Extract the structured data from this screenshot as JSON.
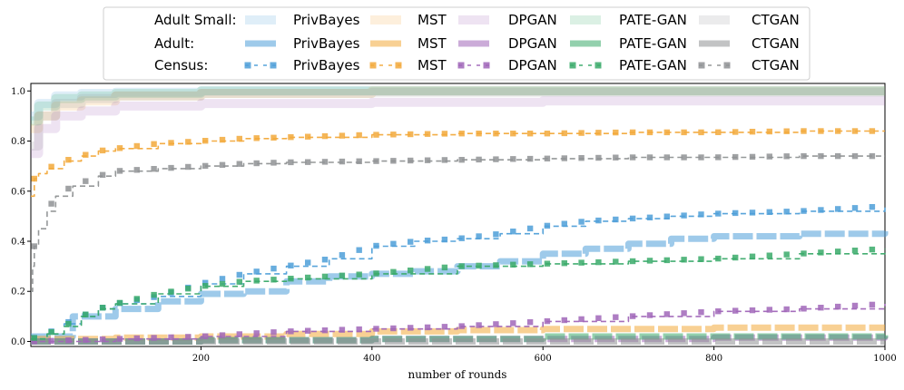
{
  "chart_data": {
    "type": "line",
    "title": "",
    "xlabel": "number of rounds",
    "ylabel": "",
    "xlim": [
      1,
      1000
    ],
    "ylim": [
      -0.02,
      1.03
    ],
    "x_ticks": [
      200,
      400,
      600,
      800,
      1000
    ],
    "y_ticks": [
      0.0,
      0.2,
      0.4,
      0.6,
      0.8,
      1.0
    ],
    "grid": false,
    "legend": {
      "placement": "top-center",
      "row_labels": [
        "Adult Small:",
        "Adult:",
        "Census:"
      ],
      "method_labels": [
        "PrivBayes",
        "MST",
        "DPGAN",
        "PATE-GAN",
        "CTGAN"
      ]
    },
    "colors": {
      "PrivBayes": "#4e9fd8",
      "MST": "#f2a93b",
      "DPGAN": "#a066b8",
      "PATE-GAN": "#3aaa6a",
      "CTGAN": "#8f9294"
    },
    "series": [
      {
        "name": "PrivBayes",
        "dataset": "Adult Small",
        "x": [
          1,
          10,
          30,
          60,
          100,
          200,
          400,
          1000
        ],
        "y": [
          0.9,
          0.95,
          0.98,
          0.99,
          0.995,
          1.0,
          1.0,
          1.0
        ]
      },
      {
        "name": "MST",
        "dataset": "Adult Small",
        "x": [
          1,
          10,
          30,
          60,
          100,
          200,
          400,
          1000
        ],
        "y": [
          0.85,
          0.9,
          0.94,
          0.96,
          0.98,
          0.99,
          1.0,
          1.0
        ]
      },
      {
        "name": "DPGAN",
        "dataset": "Adult Small",
        "x": [
          1,
          10,
          30,
          60,
          100,
          200,
          400,
          600,
          1000
        ],
        "y": [
          0.75,
          0.85,
          0.9,
          0.92,
          0.94,
          0.95,
          0.955,
          0.96,
          0.96
        ]
      },
      {
        "name": "PATE-GAN",
        "dataset": "Adult Small",
        "x": [
          1,
          10,
          30,
          60,
          100,
          200,
          400,
          1000
        ],
        "y": [
          0.88,
          0.94,
          0.97,
          0.98,
          0.99,
          1.0,
          1.0,
          1.0
        ]
      },
      {
        "name": "CTGAN",
        "dataset": "Adult Small",
        "x": [
          1,
          10,
          30,
          60,
          100,
          200,
          400,
          1000
        ],
        "y": [
          0.78,
          0.9,
          0.95,
          0.97,
          0.98,
          0.99,
          0.995,
          0.995
        ]
      },
      {
        "name": "PrivBayes",
        "dataset": "Adult",
        "x": [
          1,
          50,
          100,
          150,
          200,
          250,
          300,
          350,
          400,
          450,
          500,
          550,
          600,
          650,
          700,
          750,
          800,
          900,
          1000
        ],
        "y": [
          0.02,
          0.1,
          0.13,
          0.16,
          0.19,
          0.2,
          0.24,
          0.26,
          0.27,
          0.28,
          0.3,
          0.32,
          0.35,
          0.37,
          0.39,
          0.41,
          0.42,
          0.43,
          0.44
        ]
      },
      {
        "name": "MST",
        "dataset": "Adult",
        "x": [
          1,
          100,
          200,
          300,
          400,
          500,
          600,
          700,
          800,
          900,
          1000
        ],
        "y": [
          0.01,
          0.015,
          0.02,
          0.03,
          0.04,
          0.045,
          0.05,
          0.05,
          0.055,
          0.055,
          0.055
        ]
      },
      {
        "name": "DPGAN",
        "dataset": "Adult",
        "x": [
          1,
          200,
          400,
          600,
          800,
          1000
        ],
        "y": [
          0.0,
          0.005,
          0.01,
          0.01,
          0.015,
          0.02
        ]
      },
      {
        "name": "PATE-GAN",
        "dataset": "Adult",
        "x": [
          1,
          200,
          400,
          600,
          800,
          1000
        ],
        "y": [
          0.0,
          0.005,
          0.01,
          0.02,
          0.02,
          0.025
        ]
      },
      {
        "name": "CTGAN",
        "dataset": "Adult",
        "x": [
          1,
          200,
          400,
          600,
          800,
          1000
        ],
        "y": [
          0.0,
          0.0,
          0.0,
          0.0,
          0.0,
          0.0
        ]
      },
      {
        "name": "PrivBayes",
        "dataset": "Census",
        "x": [
          1,
          20,
          40,
          60,
          80,
          100,
          150,
          200,
          250,
          300,
          350,
          400,
          450,
          500,
          550,
          600,
          650,
          700,
          750,
          800,
          900,
          1000
        ],
        "y": [
          0.01,
          0.03,
          0.07,
          0.1,
          0.13,
          0.15,
          0.18,
          0.23,
          0.27,
          0.3,
          0.33,
          0.38,
          0.4,
          0.41,
          0.43,
          0.46,
          0.48,
          0.49,
          0.5,
          0.51,
          0.52,
          0.54
        ]
      },
      {
        "name": "MST",
        "dataset": "Census",
        "x": [
          1,
          5,
          10,
          20,
          40,
          60,
          80,
          100,
          150,
          200,
          250,
          300,
          400,
          500,
          600,
          700,
          800,
          900,
          1000
        ],
        "y": [
          0.58,
          0.65,
          0.67,
          0.69,
          0.72,
          0.74,
          0.76,
          0.77,
          0.79,
          0.8,
          0.81,
          0.815,
          0.825,
          0.83,
          0.83,
          0.835,
          0.835,
          0.84,
          0.84
        ]
      },
      {
        "name": "DPGAN",
        "dataset": "Census",
        "x": [
          1,
          100,
          200,
          300,
          400,
          500,
          600,
          700,
          800,
          900,
          1000
        ],
        "y": [
          0.0,
          0.01,
          0.02,
          0.04,
          0.05,
          0.06,
          0.08,
          0.1,
          0.12,
          0.13,
          0.15
        ]
      },
      {
        "name": "PATE-GAN",
        "dataset": "Census",
        "x": [
          1,
          20,
          40,
          60,
          80,
          100,
          150,
          200,
          250,
          300,
          400,
          500,
          600,
          700,
          800,
          900,
          1000
        ],
        "y": [
          0.01,
          0.03,
          0.06,
          0.1,
          0.13,
          0.15,
          0.19,
          0.22,
          0.24,
          0.25,
          0.27,
          0.3,
          0.31,
          0.32,
          0.33,
          0.35,
          0.37
        ]
      },
      {
        "name": "CTGAN",
        "dataset": "Census",
        "x": [
          1,
          3,
          5,
          10,
          20,
          30,
          50,
          80,
          100,
          150,
          200,
          250,
          300,
          400,
          500,
          600,
          700,
          800,
          900,
          1000
        ],
        "y": [
          0.2,
          0.3,
          0.38,
          0.45,
          0.52,
          0.58,
          0.62,
          0.66,
          0.68,
          0.69,
          0.7,
          0.71,
          0.715,
          0.72,
          0.725,
          0.73,
          0.735,
          0.735,
          0.74,
          0.74
        ]
      }
    ]
  }
}
